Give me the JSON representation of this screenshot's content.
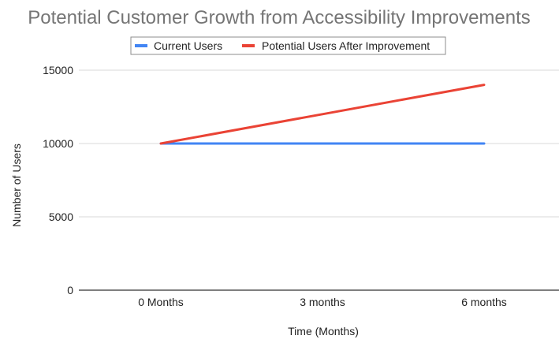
{
  "chart_data": {
    "type": "line",
    "title": "Potential Customer Growth from Accessibility Improvements",
    "xlabel": "Time (Months)",
    "ylabel": "Number of Users",
    "categories": [
      "0 Months",
      "3 months",
      "6 months"
    ],
    "series": [
      {
        "name": "Current Users",
        "color": "#4285f4",
        "values": [
          10000,
          10000,
          10000
        ]
      },
      {
        "name": "Potential Users After Improvement",
        "color": "#ea4335",
        "values": [
          10000,
          12000,
          14000
        ]
      }
    ],
    "ylim": [
      0,
      15000
    ],
    "yticks": [
      "0",
      "5000",
      "10000",
      "15000"
    ],
    "grid": true,
    "legend": "top"
  }
}
